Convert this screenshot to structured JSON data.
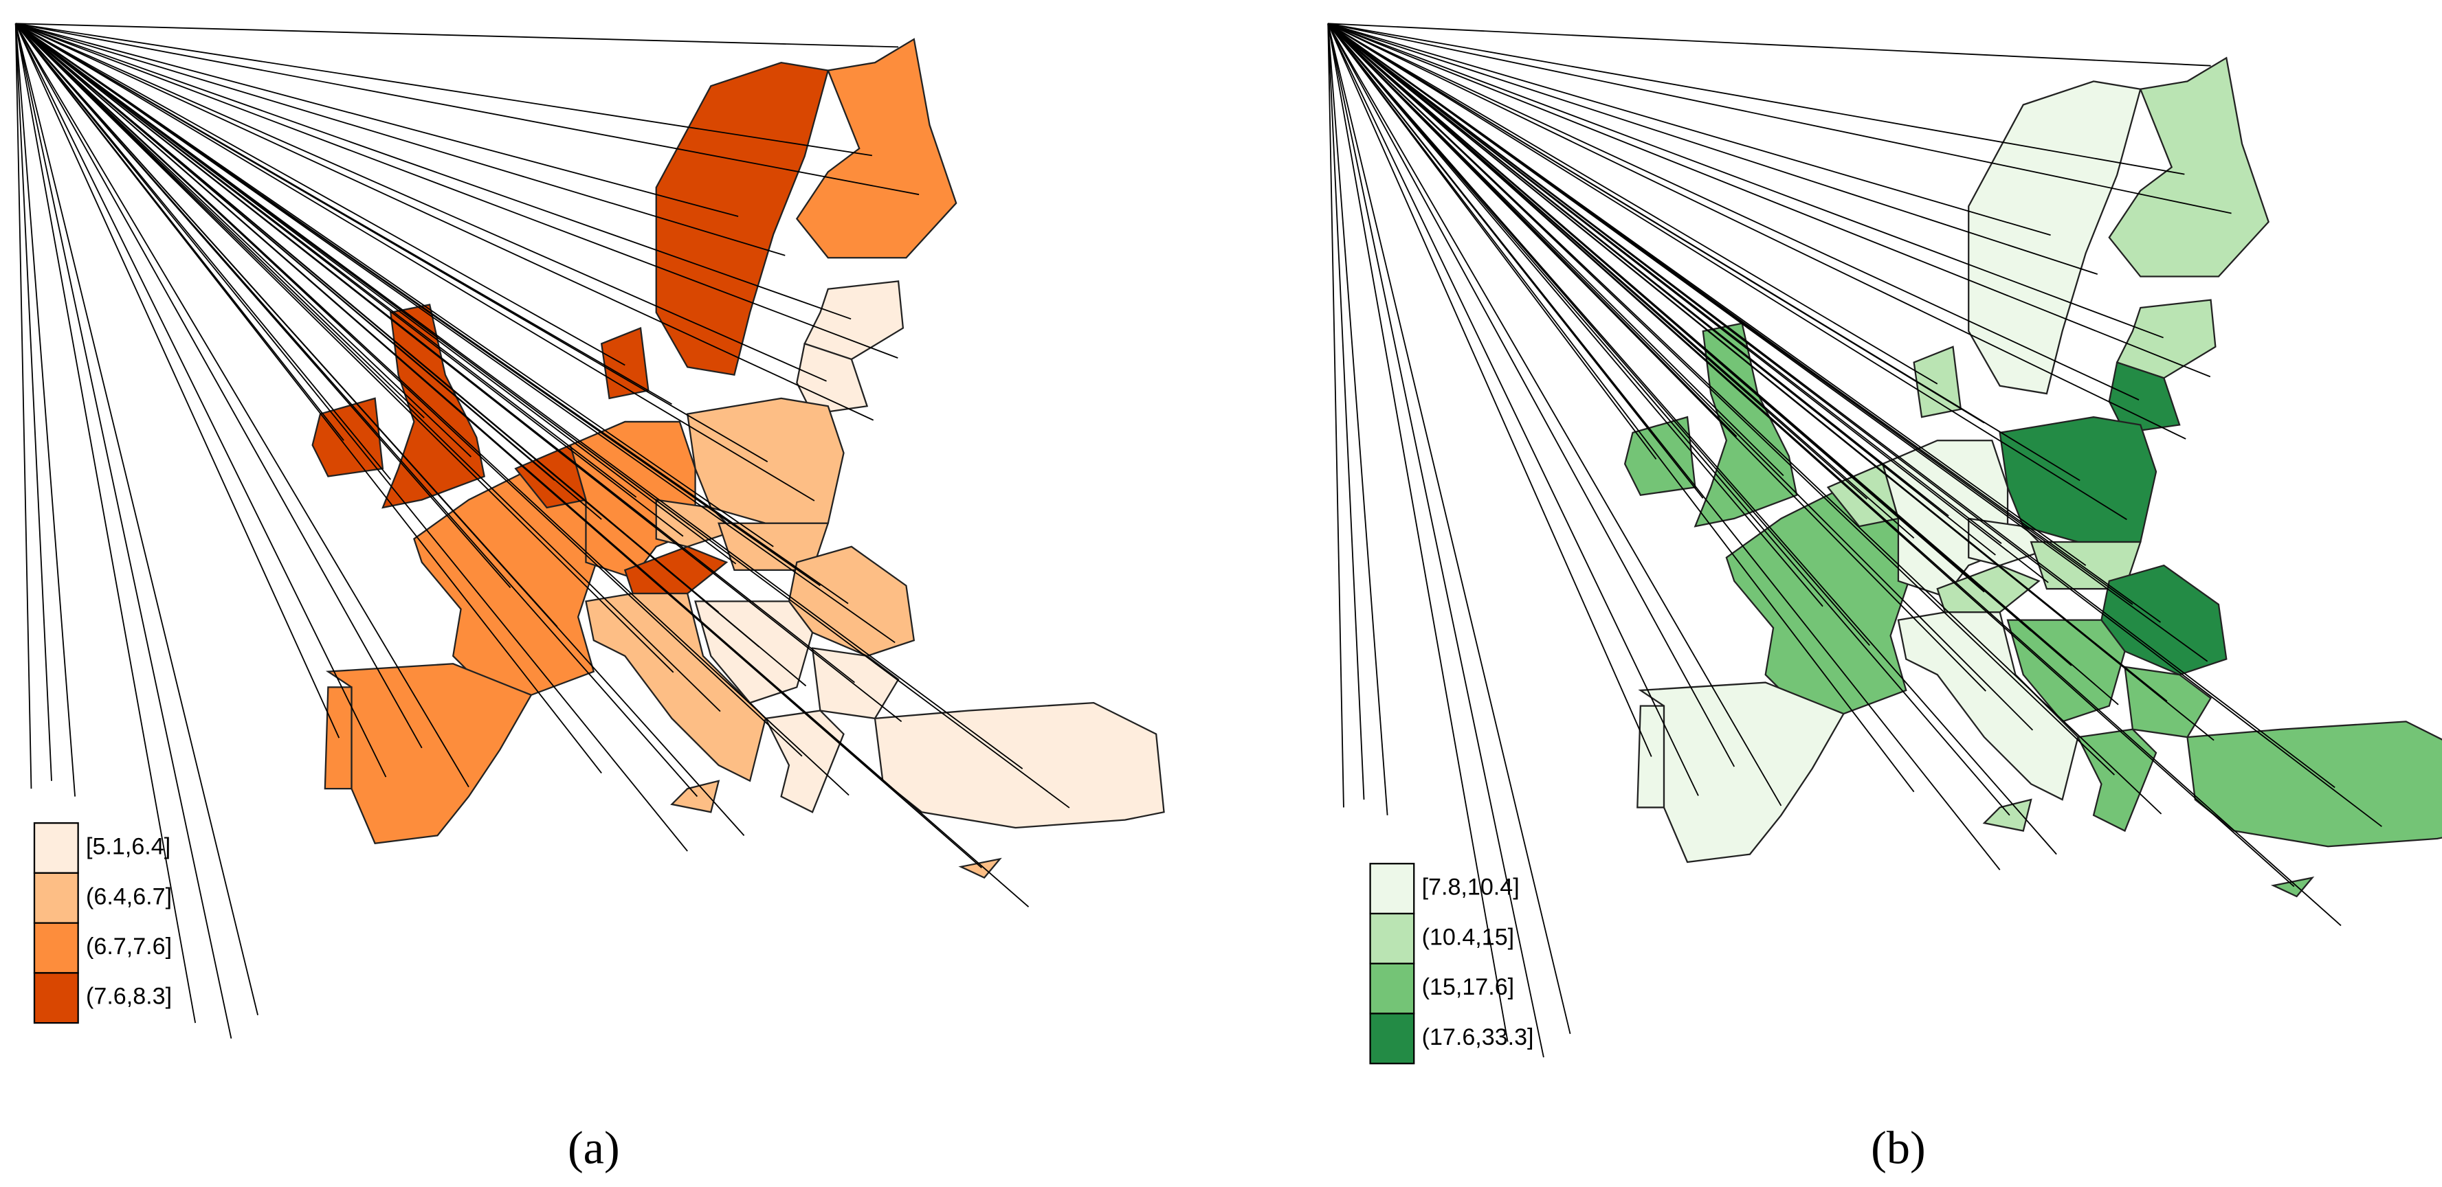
{
  "panels": [
    {
      "label": "(a)",
      "legend": [
        {
          "label": "[5.1,6.4]",
          "color": "#feeddd"
        },
        {
          "label": "(6.4,6.7]",
          "color": "#fdbe85"
        },
        {
          "label": "(6.7,7.6]",
          "color": "#fd8d3c"
        },
        {
          "label": "(7.6,8.3]",
          "color": "#d94701"
        }
      ]
    },
    {
      "label": "(b)",
      "legend": [
        {
          "label": "[7.8,10.4]",
          "color": "#edf8e9"
        },
        {
          "label": "(10.4,15]",
          "color": "#bae4b3"
        },
        {
          "label": "(15,17.6]",
          "color": "#74c476"
        },
        {
          "label": "(17.6,33.3]",
          "color": "#238b45"
        }
      ]
    }
  ]
}
